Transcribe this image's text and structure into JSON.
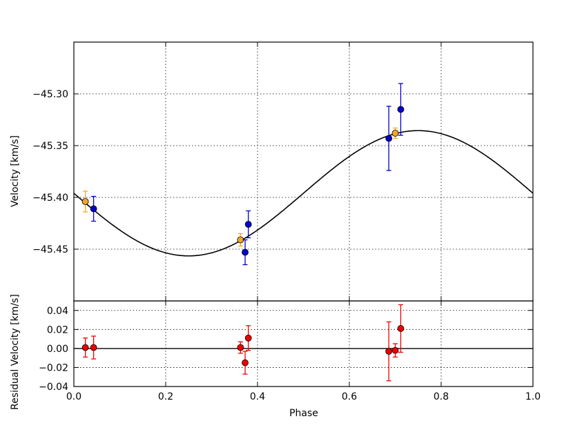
{
  "chart_data": [
    {
      "type": "scatter",
      "panel": "top",
      "xlabel": "",
      "ylabel": "Velocity [km/s]",
      "xlim": [
        0.0,
        1.0
      ],
      "ylim": [
        -45.5,
        -45.25
      ],
      "yticks": [
        "−45.30",
        "−45.35",
        "−45.40",
        "−45.45"
      ],
      "ytick_values": [
        -45.3,
        -45.35,
        -45.4,
        -45.45
      ],
      "xticks": [
        0.0,
        0.2,
        0.4,
        0.6,
        0.8,
        1.0
      ],
      "grid": true,
      "model_curve": {
        "color": "#000000",
        "center": -45.396,
        "amplitude": 0.0605,
        "phase_of_minimum": 0.25
      },
      "series": [
        {
          "color": "#f5a623",
          "points": [
            {
              "x": 0.025,
              "y": -45.404,
              "err": 0.01
            },
            {
              "x": 0.363,
              "y": -45.441,
              "err": 0.006
            },
            {
              "x": 0.7,
              "y": -45.338,
              "err": 0.005
            }
          ]
        },
        {
          "color": "#0000cc",
          "points": [
            {
              "x": 0.043,
              "y": -45.411,
              "err": 0.012
            },
            {
              "x": 0.373,
              "y": -45.453,
              "err": 0.012
            },
            {
              "x": 0.38,
              "y": -45.426,
              "err": 0.013
            },
            {
              "x": 0.686,
              "y": -45.343,
              "err": 0.031
            },
            {
              "x": 0.712,
              "y": -45.315,
              "err": 0.025
            }
          ]
        }
      ]
    },
    {
      "type": "scatter",
      "panel": "bottom",
      "xlabel": "Phase",
      "ylabel": "Residual Velocity [km/s]",
      "xlim": [
        0.0,
        1.0
      ],
      "ylim": [
        -0.04,
        0.05
      ],
      "yticks": [
        "0.04",
        "0.02",
        "0.00",
        "−0.02",
        "−0.04"
      ],
      "ytick_values": [
        0.04,
        0.02,
        0.0,
        -0.02,
        -0.04
      ],
      "xticks": [
        "0.0",
        "0.2",
        "0.4",
        "0.6",
        "0.8",
        "1.0"
      ],
      "xtick_values": [
        0.0,
        0.2,
        0.4,
        0.6,
        0.8,
        1.0
      ],
      "grid": true,
      "zero_line": 0.0,
      "series": [
        {
          "color": "#ee0000",
          "points": [
            {
              "x": 0.025,
              "y": 0.001,
              "err": 0.01
            },
            {
              "x": 0.043,
              "y": 0.001,
              "err": 0.012
            },
            {
              "x": 0.363,
              "y": 0.001,
              "err": 0.006
            },
            {
              "x": 0.373,
              "y": -0.015,
              "err": 0.012
            },
            {
              "x": 0.38,
              "y": 0.011,
              "err": 0.013
            },
            {
              "x": 0.686,
              "y": -0.003,
              "err": 0.031
            },
            {
              "x": 0.7,
              "y": -0.002,
              "err": 0.007
            },
            {
              "x": 0.712,
              "y": 0.021,
              "err": 0.025
            }
          ]
        }
      ]
    }
  ]
}
